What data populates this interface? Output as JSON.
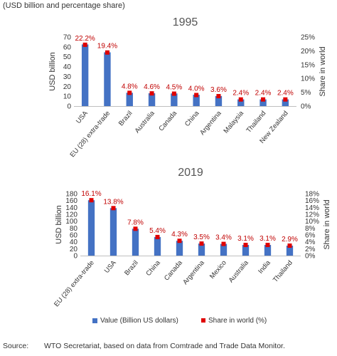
{
  "note": "(USD billion and percentage share)",
  "source": {
    "label": "Source:",
    "text": "WTO Secretariat, based on data from Comtrade and Trade Data Monitor."
  },
  "colors": {
    "bar": "#4472c4",
    "marker": "#e00000",
    "label": "#c00000"
  },
  "legend": {
    "bar_label": "Value (Billion US dollars)",
    "marker_label": "Share in world (%)"
  },
  "chart_data": [
    {
      "type": "bar",
      "title": "1995",
      "ylabel": "USD billion",
      "y2label": "Share in world",
      "ylim": [
        0,
        70
      ],
      "yticks": [
        0,
        10,
        20,
        30,
        40,
        50,
        60,
        70
      ],
      "y2lim": [
        0,
        25
      ],
      "y2ticks": [
        0,
        5,
        10,
        15,
        20,
        25
      ],
      "categories": [
        "USA",
        "EU (28) extra-trade",
        "Brazil",
        "Australia",
        "Canada",
        "China",
        "Argentina",
        "Malaysia",
        "Thailand",
        "New Zealand"
      ],
      "series": [
        {
          "name": "Value (Billion US dollars)",
          "axis": "left",
          "kind": "bar",
          "values": [
            62.5,
            54.5,
            13.5,
            13.0,
            12.8,
            11.5,
            10.2,
            6.8,
            6.8,
            6.8
          ]
        },
        {
          "name": "Share in world (%)",
          "axis": "right",
          "kind": "marker",
          "values": [
            22.2,
            19.4,
            4.8,
            4.6,
            4.5,
            4.0,
            3.6,
            2.4,
            2.4,
            2.4
          ],
          "labels": [
            "22.2%",
            "19.4%",
            "4.8%",
            "4.6%",
            "4.5%",
            "4.0%",
            "3.6%",
            "2.4%",
            "2.4%",
            "2.4%"
          ]
        }
      ]
    },
    {
      "type": "bar",
      "title": "2019",
      "ylabel": "USD billion",
      "y2label": "Share in world",
      "ylim": [
        0,
        180
      ],
      "yticks": [
        0,
        20,
        40,
        60,
        80,
        100,
        120,
        140,
        160,
        180
      ],
      "y2lim": [
        0,
        18
      ],
      "y2ticks": [
        0,
        2,
        4,
        6,
        8,
        10,
        12,
        14,
        16,
        18
      ],
      "categories": [
        "EU (28) extra-trade",
        "USA",
        "Brazil",
        "China",
        "Canada",
        "Argentina",
        "Mexico",
        "Australia",
        "India",
        "Thailand"
      ],
      "series": [
        {
          "name": "Value (Billion US dollars)",
          "axis": "left",
          "kind": "bar",
          "values": [
            161,
            138,
            78,
            54,
            43,
            35,
            34,
            31,
            31,
            29
          ]
        },
        {
          "name": "Share in world (%)",
          "axis": "right",
          "kind": "marker",
          "values": [
            16.1,
            13.8,
            7.8,
            5.4,
            4.3,
            3.5,
            3.4,
            3.1,
            3.1,
            2.9
          ],
          "labels": [
            "16.1%",
            "13.8%",
            "7.8%",
            "5.4%",
            "4.3%",
            "3.5%",
            "3.4%",
            "3.1%",
            "3.1%",
            "2.9%"
          ]
        }
      ]
    }
  ]
}
